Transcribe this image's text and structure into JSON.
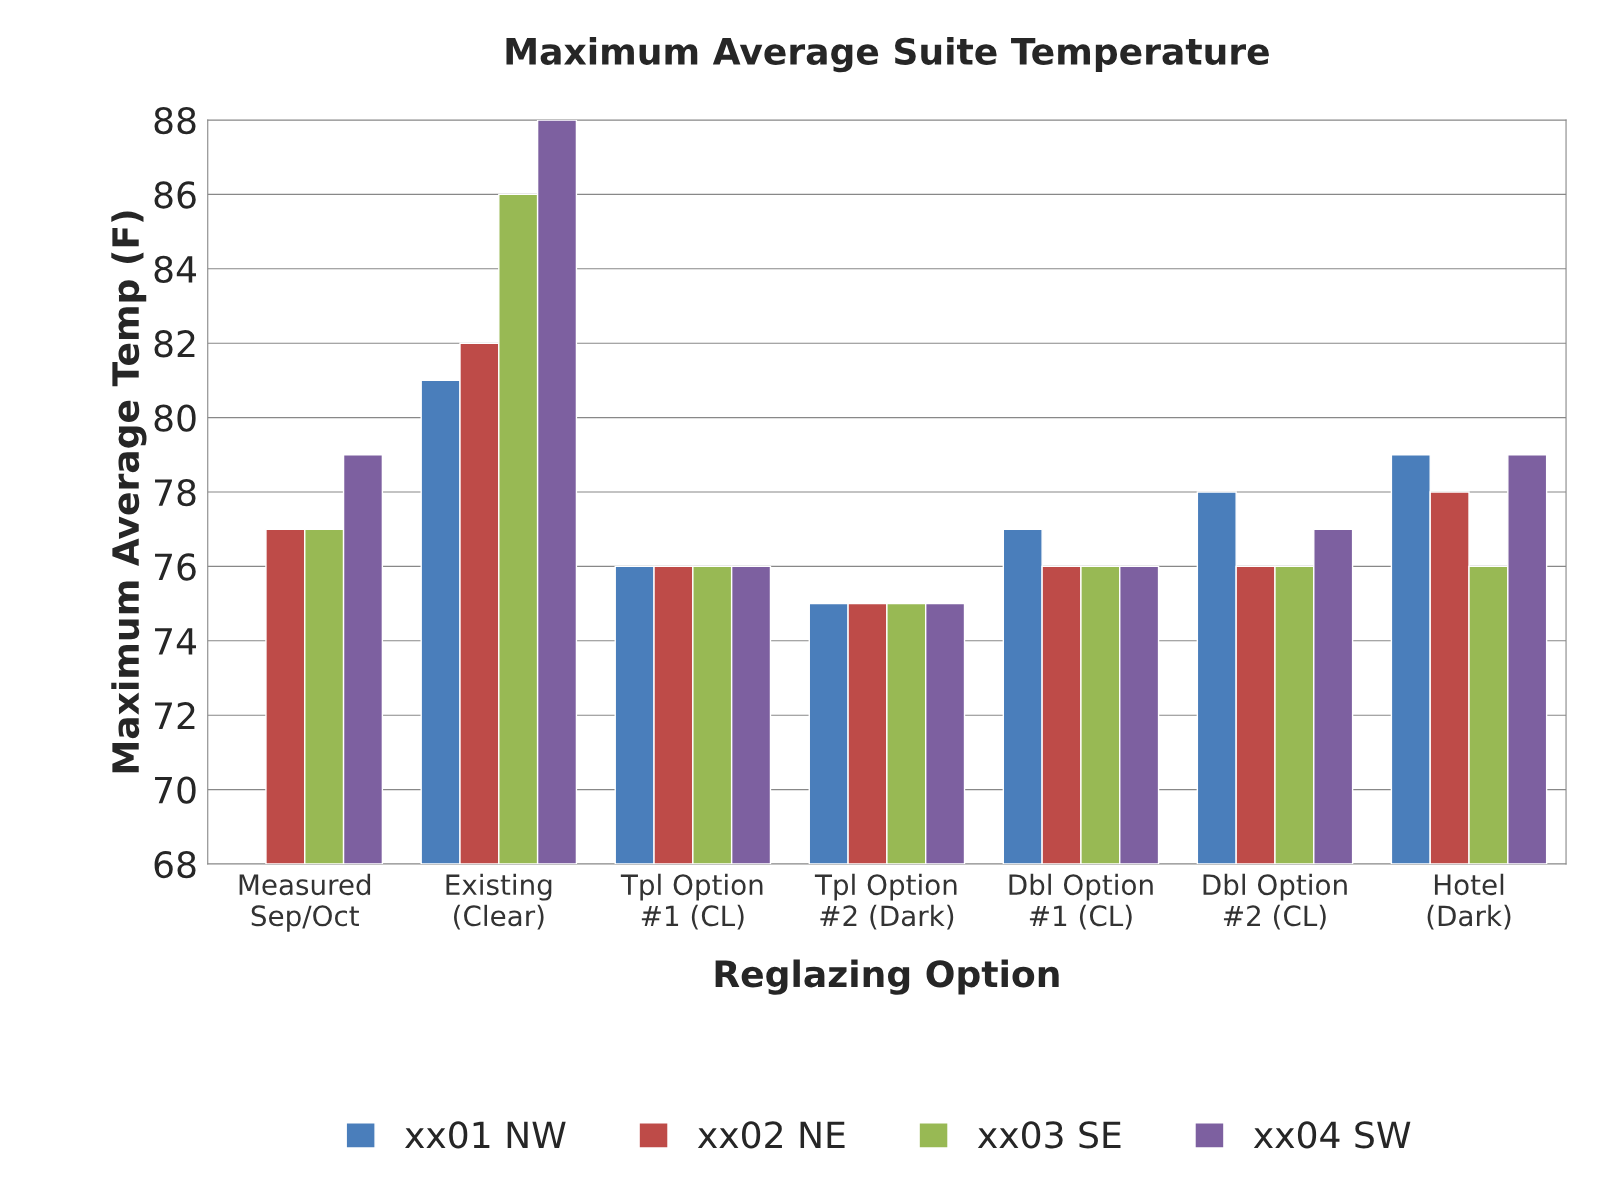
{
  "chart_data": {
    "type": "bar",
    "title": "Maximum Average Suite Temperature",
    "xlabel": "Reglazing Option",
    "ylabel": "Maximum Average Temp (F)",
    "categories": [
      "Measured\nSep/Oct",
      "Existing\n(Clear)",
      "Tpl Option\n#1 (CL)",
      "Tpl Option\n#2 (Dark)",
      "Dbl Option\n#1 (CL)",
      "Dbl Option\n#2 (CL)",
      "Hotel\n(Dark)"
    ],
    "series": [
      {
        "name": "xx01 NW",
        "color": "#4a7ebb",
        "values": [
          null,
          81,
          76,
          75,
          77,
          78,
          79
        ]
      },
      {
        "name": "xx02 NE",
        "color": "#be4b48",
        "values": [
          77,
          82,
          76,
          75,
          76,
          76,
          78
        ]
      },
      {
        "name": "xx03 SE",
        "color": "#98b954",
        "values": [
          77,
          86,
          76,
          75,
          76,
          76,
          76
        ]
      },
      {
        "name": "xx04 SW",
        "color": "#7d60a0",
        "values": [
          79,
          88,
          76,
          75,
          76,
          77,
          79
        ]
      }
    ],
    "ylim": [
      68,
      88
    ],
    "yticks": [
      68,
      70,
      72,
      74,
      76,
      78,
      80,
      82,
      84,
      86,
      88
    ],
    "grid": "y",
    "legend": "bottom"
  }
}
